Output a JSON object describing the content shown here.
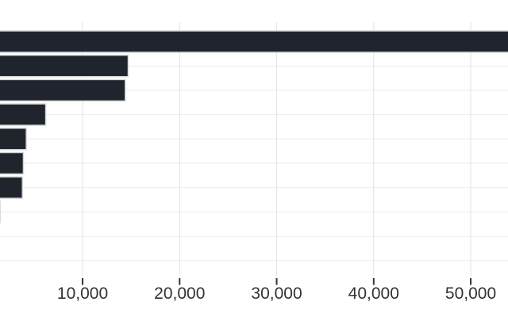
{
  "chart_data": {
    "type": "bar",
    "orientation": "horizontal",
    "title": "",
    "xlabel": "",
    "ylabel": "",
    "categories": [
      "",
      "",
      "",
      "",
      "",
      "",
      "",
      "",
      "",
      ""
    ],
    "values": [
      55000,
      14700,
      14400,
      6200,
      4200,
      3900,
      3800,
      1500,
      0,
      0
    ],
    "x_ticks": [
      10000,
      20000,
      30000,
      40000,
      50000
    ],
    "x_tick_labels": [
      "10,000",
      "20,000",
      "30,000",
      "40,000",
      "50,000"
    ],
    "xlim_visible": [
      1490,
      53840
    ],
    "grid": true,
    "legend": false,
    "notes_layout": "horizontal bar chart cropped at left and right image edges; longest bar overflows right edge; category labels cut off outside view",
    "colors": {
      "bar_fill": "#20242c",
      "bar_border": "#d6d6d6",
      "grid_vertical": "#e2e2e2",
      "grid_horizontal": "#ebebeb",
      "axis_tick": "#333333",
      "tick_label": "#333333",
      "background": "#ffffff"
    }
  }
}
